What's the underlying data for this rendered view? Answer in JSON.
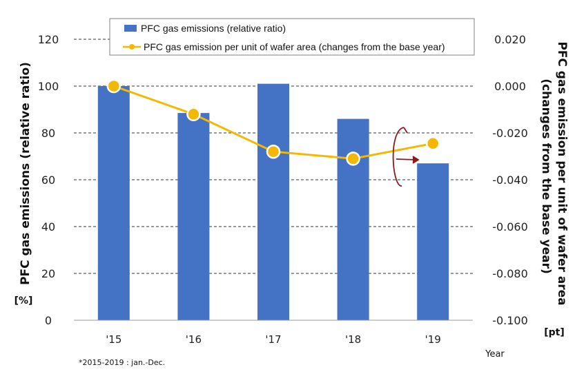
{
  "chart_data": {
    "type": "bar",
    "categories": [
      "'15",
      "'16",
      "'17",
      "'18",
      "'19"
    ],
    "series": [
      {
        "name": "PFC gas emissions (relative ratio)",
        "type": "bar",
        "axis": "left",
        "color": "#4472C4",
        "values": [
          100,
          88.5,
          101,
          86,
          67
        ]
      },
      {
        "name": "PFC gas emission per unit of wafer area (changes from the base year)",
        "type": "line",
        "axis": "right",
        "color": "#F5B800",
        "values": [
          0.0,
          -0.012,
          -0.028,
          -0.031,
          -0.0245
        ]
      }
    ],
    "ylabel": "PFC gas emissions (relative ratio)",
    "ylabel_unit": "[%]",
    "ylim": [
      0,
      120
    ],
    "yticks": [
      "0",
      "20",
      "40",
      "60",
      "80",
      "100",
      "120"
    ],
    "y2label_line1": "PFC gas emission per unit of wafer area",
    "y2label_line2": "(changes from the base year)",
    "y2label_unit": "[pt]",
    "y2lim": [
      -0.1,
      0.02
    ],
    "y2ticks": [
      "-0.100",
      "-0.080",
      "-0.060",
      "-0.040",
      "-0.020",
      "0.000",
      "0.020"
    ],
    "xlabel": "Year",
    "footnote": "*2015-2019 : jan.-Dec.",
    "grid": "dashed horizontal",
    "legend_position": "top"
  }
}
